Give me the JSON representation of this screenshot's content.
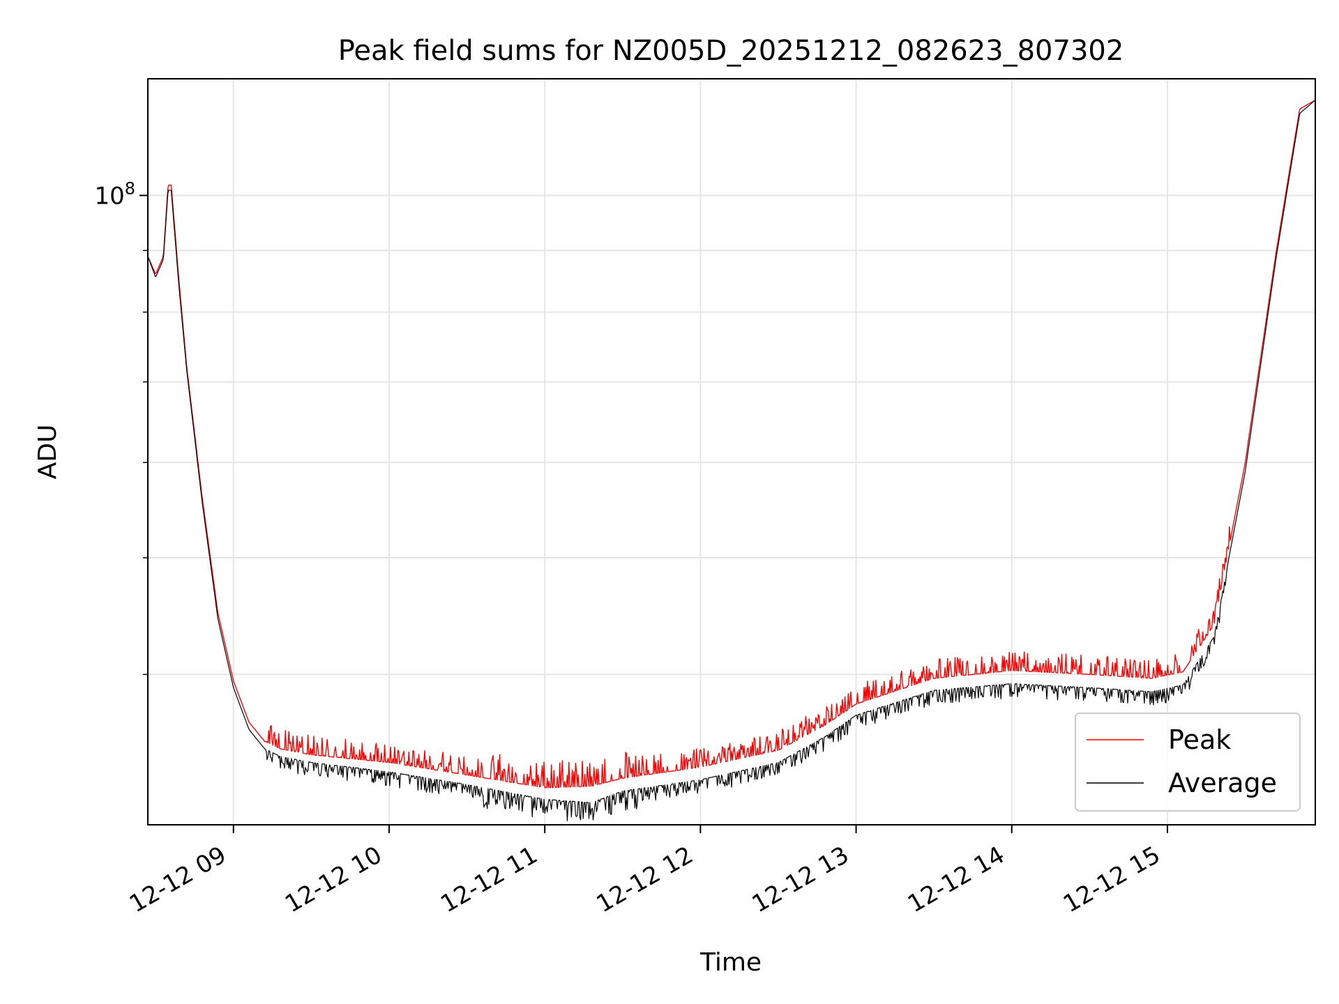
{
  "chart_data": {
    "type": "line",
    "title": "Peak field sums for NZ005D_20251212_082623_807302",
    "xlabel": "Time",
    "ylabel": "ADU",
    "yscale": "log",
    "ylim": [
      30000000,
      125000000
    ],
    "xlim_hours": [
      8.45,
      15.95
    ],
    "grid": true,
    "legend_position": "lower-right",
    "x_ticks": [
      {
        "value": 9,
        "label": "12-12 09"
      },
      {
        "value": 10,
        "label": "12-12 10"
      },
      {
        "value": 11,
        "label": "12-12 11"
      },
      {
        "value": 12,
        "label": "12-12 12"
      },
      {
        "value": 13,
        "label": "12-12 13"
      },
      {
        "value": 14,
        "label": "12-12 14"
      },
      {
        "value": 15,
        "label": "12-12 15"
      }
    ],
    "y_major_ticks": [
      {
        "value": 100000000,
        "label_base": "10",
        "label_exp": "8"
      }
    ],
    "y_minor_ticks": [
      40000000,
      50000000,
      60000000,
      70000000,
      80000000,
      90000000
    ],
    "x_hours": [
      8.45,
      8.5,
      8.55,
      8.58,
      8.6,
      8.65,
      8.7,
      8.8,
      8.9,
      9.0,
      9.1,
      9.2,
      9.3,
      9.5,
      10.0,
      10.5,
      11.0,
      11.3,
      11.5,
      12.0,
      12.5,
      12.8,
      13.0,
      13.5,
      14.0,
      14.5,
      14.9,
      15.1,
      15.3,
      15.5,
      15.7,
      15.85,
      15.95
    ],
    "series": [
      {
        "name": "Peak",
        "color": "#ff0000",
        "values": [
          89000000,
          86000000,
          89000000,
          102000000,
          102000000,
          85000000,
          72000000,
          56000000,
          45000000,
          39500000,
          36500000,
          35200000,
          34700000,
          34300000,
          33800000,
          33000000,
          32200000,
          32300000,
          32800000,
          33500000,
          34600000,
          36300000,
          37800000,
          39700000,
          40300000,
          40000000,
          39700000,
          40200000,
          44000000,
          60000000,
          90000000,
          118000000,
          120000000
        ]
      },
      {
        "name": "Average",
        "color": "#000000",
        "values": [
          89000000,
          85500000,
          88500000,
          101000000,
          101000000,
          84000000,
          71500000,
          55500000,
          44500000,
          39000000,
          36000000,
          34700000,
          34200000,
          33800000,
          33200000,
          32400000,
          31500000,
          31300000,
          32000000,
          32700000,
          33800000,
          35500000,
          37000000,
          38800000,
          39300000,
          39000000,
          38700000,
          39200000,
          43000000,
          59000000,
          89000000,
          117000000,
          120000000
        ]
      }
    ],
    "jitter_note": "both series fluctuate with narrow spikes"
  }
}
